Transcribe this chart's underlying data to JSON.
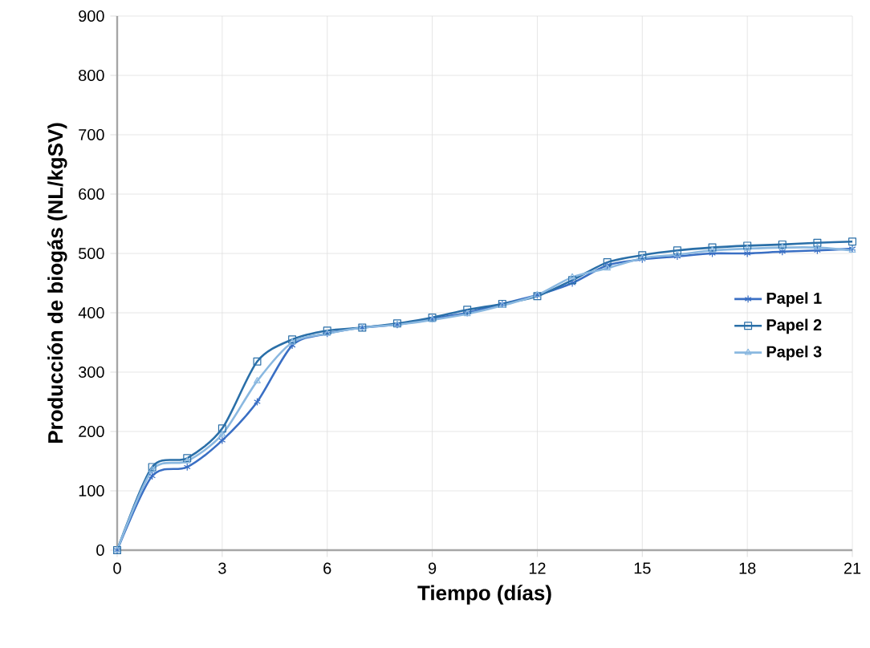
{
  "chart_data": {
    "type": "line",
    "xlabel": "Tiempo (días)",
    "ylabel": "Producción de biogás (NL/kgSV)",
    "x": [
      0,
      1,
      2,
      3,
      4,
      5,
      6,
      7,
      8,
      9,
      10,
      11,
      12,
      13,
      14,
      15,
      16,
      17,
      18,
      19,
      20,
      21
    ],
    "series": [
      {
        "name": "Papel 1",
        "color": "#3a6fc4",
        "marker": "cross",
        "values": [
          0,
          125,
          140,
          185,
          250,
          345,
          365,
          375,
          380,
          390,
          400,
          415,
          430,
          450,
          480,
          490,
          495,
          500,
          500,
          503,
          505,
          508
        ]
      },
      {
        "name": "Papel 2",
        "color": "#2a6fa8",
        "marker": "square",
        "values": [
          0,
          140,
          155,
          205,
          318,
          355,
          370,
          375,
          382,
          392,
          405,
          415,
          428,
          455,
          485,
          497,
          505,
          510,
          513,
          515,
          518,
          520
        ]
      },
      {
        "name": "Papel 3",
        "color": "#8ab8e0",
        "marker": "triangle",
        "values": [
          0,
          135,
          150,
          195,
          285,
          350,
          365,
          375,
          380,
          388,
          398,
          412,
          430,
          460,
          475,
          492,
          498,
          505,
          508,
          510,
          510,
          505
        ]
      }
    ],
    "xlim": [
      0,
      21
    ],
    "xticks": [
      0,
      3,
      6,
      9,
      12,
      15,
      18,
      21
    ],
    "ylim": [
      0,
      900
    ],
    "yticks": [
      0,
      100,
      200,
      300,
      400,
      500,
      600,
      700,
      800,
      900
    ],
    "grid": true,
    "legend": "right",
    "line_style": "solid"
  }
}
